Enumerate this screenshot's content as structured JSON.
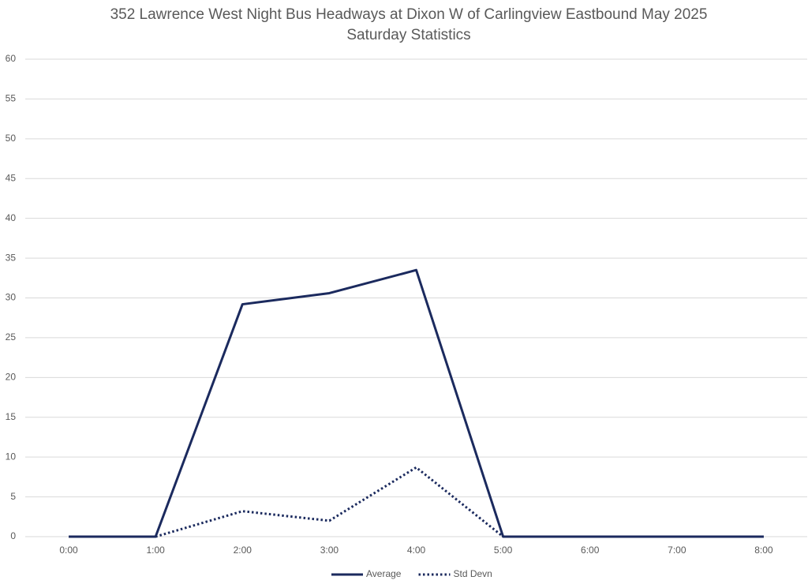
{
  "chart_data": {
    "type": "line",
    "title": "352 Lawrence West Night Bus Headways at Dixon W of Carlingview Eastbound May 2025",
    "subtitle": "Saturday Statistics",
    "categories": [
      "0:00",
      "1:00",
      "2:00",
      "3:00",
      "4:00",
      "5:00",
      "6:00",
      "7:00",
      "8:00"
    ],
    "series": [
      {
        "name": "Average",
        "color": "#1b2a5e",
        "dash": "solid",
        "values": [
          0,
          0,
          29.2,
          30.6,
          33.5,
          0,
          0,
          0,
          0
        ]
      },
      {
        "name": "Std Devn",
        "color": "#1b2a5e",
        "dash": "dotted",
        "values": [
          null,
          0,
          3.2,
          2.0,
          8.7,
          0,
          null,
          null,
          null
        ]
      }
    ],
    "ylim": [
      0,
      60
    ],
    "yticks": [
      0,
      5,
      10,
      15,
      20,
      25,
      30,
      35,
      40,
      45,
      50,
      55,
      60
    ],
    "grid": true,
    "legend": "bottom"
  }
}
